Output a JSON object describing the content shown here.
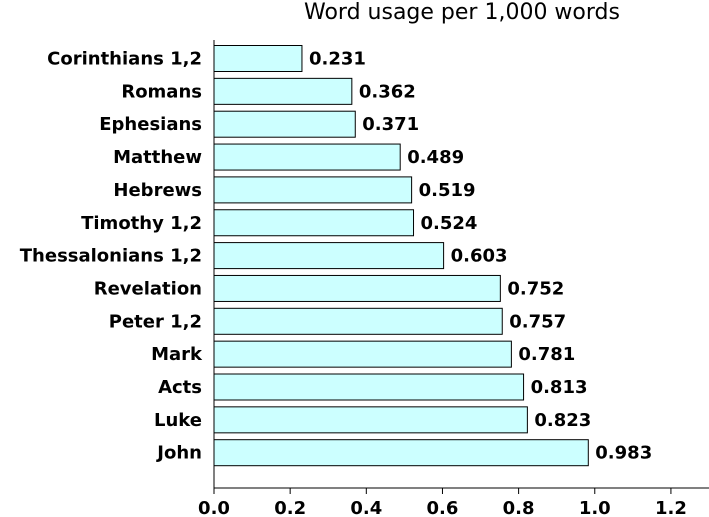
{
  "chart_data": {
    "type": "bar",
    "orientation": "horizontal",
    "title": "Word usage per 1,000 words",
    "xlabel": "",
    "ylabel": "",
    "categories": [
      "Corinthians 1,2",
      "Romans",
      "Ephesians",
      "Matthew",
      "Hebrews",
      "Timothy 1,2",
      "Thessalonians 1,2",
      "Revelation",
      "Peter 1,2",
      "Mark",
      "Acts",
      "Luke",
      "John"
    ],
    "values": [
      0.231,
      0.362,
      0.371,
      0.489,
      0.519,
      0.524,
      0.603,
      0.752,
      0.757,
      0.781,
      0.813,
      0.823,
      0.983
    ],
    "value_labels": [
      "0.231",
      "0.362",
      "0.371",
      "0.489",
      "0.519",
      "0.524",
      "0.603",
      "0.752",
      "0.757",
      "0.781",
      "0.813",
      "0.823",
      "0.983"
    ],
    "xlim": [
      0,
      1.3
    ],
    "xticks": [
      0.0,
      0.2,
      0.4,
      0.6,
      0.8,
      1.0,
      1.2
    ],
    "xtick_labels": [
      "0.0",
      "0.2",
      "0.4",
      "0.6",
      "0.8",
      "1.0",
      "1.2"
    ],
    "grid": false,
    "legend": "none",
    "colors": {
      "bar_fill": "#ccffff",
      "bar_stroke": "#000000",
      "axis": "#000000",
      "text": "#000000"
    }
  }
}
